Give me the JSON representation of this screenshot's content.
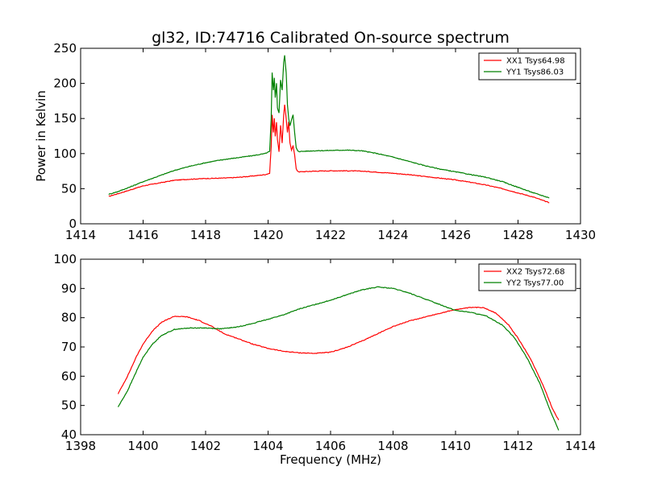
{
  "chart_data": [
    {
      "type": "line",
      "title": "gl32, ID:74716 Calibrated On-source spectrum",
      "xlabel": "",
      "ylabel": "Power in Kelvin",
      "xlim": [
        1414,
        1430
      ],
      "ylim": [
        0,
        250
      ],
      "xticks": [
        1414,
        1416,
        1418,
        1420,
        1422,
        1424,
        1426,
        1428,
        1430
      ],
      "yticks": [
        0,
        50,
        100,
        150,
        200,
        250
      ],
      "grid": false,
      "legend_position": "top-right",
      "series": [
        {
          "name": "XX1 Tsys64.98",
          "color": "#ff0000",
          "points": [
            [
              1414.9,
              39
            ],
            [
              1415.2,
              43
            ],
            [
              1415.5,
              47
            ],
            [
              1416.0,
              54
            ],
            [
              1416.5,
              58
            ],
            [
              1417.0,
              62
            ],
            [
              1417.5,
              63.5
            ],
            [
              1418.0,
              64.5
            ],
            [
              1418.5,
              65
            ],
            [
              1419.0,
              66
            ],
            [
              1419.5,
              68
            ],
            [
              1419.9,
              70
            ],
            [
              1420.05,
              72
            ],
            [
              1420.1,
              110
            ],
            [
              1420.13,
              155
            ],
            [
              1420.17,
              130
            ],
            [
              1420.2,
              150
            ],
            [
              1420.23,
              125
            ],
            [
              1420.27,
              145
            ],
            [
              1420.3,
              120
            ],
            [
              1420.35,
              103
            ],
            [
              1420.4,
              140
            ],
            [
              1420.45,
              115
            ],
            [
              1420.5,
              155
            ],
            [
              1420.53,
              170
            ],
            [
              1420.58,
              150
            ],
            [
              1420.62,
              130
            ],
            [
              1420.66,
              145
            ],
            [
              1420.7,
              115
            ],
            [
              1420.75,
              105
            ],
            [
              1420.8,
              112
            ],
            [
              1420.85,
              98
            ],
            [
              1420.9,
              78
            ],
            [
              1420.95,
              75
            ],
            [
              1421.0,
              74
            ],
            [
              1421.5,
              75
            ],
            [
              1422.0,
              75.5
            ],
            [
              1422.5,
              75.5
            ],
            [
              1423.0,
              75
            ],
            [
              1423.5,
              73.5
            ],
            [
              1424.0,
              72
            ],
            [
              1424.5,
              70
            ],
            [
              1425.0,
              67.5
            ],
            [
              1425.5,
              65
            ],
            [
              1426.0,
              62.5
            ],
            [
              1426.5,
              59
            ],
            [
              1427.0,
              55
            ],
            [
              1427.5,
              50
            ],
            [
              1428.0,
              44
            ],
            [
              1428.5,
              38
            ],
            [
              1429.0,
              30
            ]
          ]
        },
        {
          "name": "YY1 Tsys86.03",
          "color": "#008000",
          "points": [
            [
              1414.9,
              42
            ],
            [
              1415.2,
              46
            ],
            [
              1415.5,
              51
            ],
            [
              1416.0,
              60
            ],
            [
              1416.5,
              68
            ],
            [
              1417.0,
              76
            ],
            [
              1417.5,
              82
            ],
            [
              1418.0,
              87
            ],
            [
              1418.5,
              91
            ],
            [
              1419.0,
              94
            ],
            [
              1419.5,
              97
            ],
            [
              1419.9,
              100
            ],
            [
              1420.05,
              103
            ],
            [
              1420.1,
              150
            ],
            [
              1420.13,
              215
            ],
            [
              1420.17,
              190
            ],
            [
              1420.2,
              208
            ],
            [
              1420.23,
              180
            ],
            [
              1420.27,
              200
            ],
            [
              1420.3,
              165
            ],
            [
              1420.35,
              158
            ],
            [
              1420.4,
              205
            ],
            [
              1420.45,
              190
            ],
            [
              1420.5,
              230
            ],
            [
              1420.53,
              240
            ],
            [
              1420.58,
              215
            ],
            [
              1420.62,
              170
            ],
            [
              1420.66,
              150
            ],
            [
              1420.7,
              140
            ],
            [
              1420.75,
              148
            ],
            [
              1420.8,
              155
            ],
            [
              1420.85,
              130
            ],
            [
              1420.9,
              108
            ],
            [
              1420.95,
              104
            ],
            [
              1421.0,
              103
            ],
            [
              1421.5,
              104
            ],
            [
              1422.0,
              104.5
            ],
            [
              1422.5,
              105
            ],
            [
              1423.0,
              104
            ],
            [
              1423.5,
              100
            ],
            [
              1424.0,
              95
            ],
            [
              1424.5,
              89
            ],
            [
              1425.0,
              83
            ],
            [
              1425.5,
              78
            ],
            [
              1426.0,
              74
            ],
            [
              1426.5,
              70
            ],
            [
              1427.0,
              66
            ],
            [
              1427.5,
              60
            ],
            [
              1428.0,
              52
            ],
            [
              1428.5,
              44
            ],
            [
              1429.0,
              37
            ]
          ]
        }
      ]
    },
    {
      "type": "line",
      "title": "",
      "xlabel": "Frequency (MHz)",
      "ylabel": "",
      "xlim": [
        1398,
        1414
      ],
      "ylim": [
        40,
        100
      ],
      "xticks": [
        1398,
        1400,
        1402,
        1404,
        1406,
        1408,
        1410,
        1412,
        1414
      ],
      "yticks": [
        40,
        50,
        60,
        70,
        80,
        90,
        100
      ],
      "grid": false,
      "legend_position": "top-right",
      "series": [
        {
          "name": "XX2 Tsys72.68",
          "color": "#ff0000",
          "points": [
            [
              1399.2,
              54
            ],
            [
              1399.5,
              60
            ],
            [
              1399.8,
              67
            ],
            [
              1400.0,
              71
            ],
            [
              1400.3,
              75.5
            ],
            [
              1400.6,
              78.5
            ],
            [
              1401.0,
              80.5
            ],
            [
              1401.4,
              80.3
            ],
            [
              1401.8,
              79
            ],
            [
              1402.2,
              77
            ],
            [
              1402.6,
              74.5
            ],
            [
              1403.0,
              73
            ],
            [
              1403.5,
              71
            ],
            [
              1404.0,
              69.5
            ],
            [
              1404.5,
              68.5
            ],
            [
              1405.0,
              68
            ],
            [
              1405.5,
              67.8
            ],
            [
              1406.0,
              68.2
            ],
            [
              1406.5,
              69.8
            ],
            [
              1407.0,
              72
            ],
            [
              1407.5,
              74.5
            ],
            [
              1408.0,
              77
            ],
            [
              1408.5,
              78.8
            ],
            [
              1409.0,
              80.2
            ],
            [
              1409.5,
              81.5
            ],
            [
              1410.0,
              82.8
            ],
            [
              1410.5,
              83.5
            ],
            [
              1410.9,
              83.5
            ],
            [
              1411.3,
              81.5
            ],
            [
              1411.7,
              77.5
            ],
            [
              1412.0,
              73
            ],
            [
              1412.4,
              66
            ],
            [
              1412.8,
              57
            ],
            [
              1413.1,
              49
            ],
            [
              1413.3,
              45
            ]
          ]
        },
        {
          "name": "YY2 Tsys77.00",
          "color": "#008000",
          "points": [
            [
              1399.2,
              49.5
            ],
            [
              1399.5,
              55
            ],
            [
              1399.8,
              62
            ],
            [
              1400.0,
              66.5
            ],
            [
              1400.3,
              71
            ],
            [
              1400.6,
              74
            ],
            [
              1401.0,
              76
            ],
            [
              1401.5,
              76.5
            ],
            [
              1402.0,
              76.5
            ],
            [
              1402.5,
              76.2
            ],
            [
              1403.0,
              76.8
            ],
            [
              1403.5,
              78
            ],
            [
              1404.0,
              79.5
            ],
            [
              1404.5,
              81
            ],
            [
              1405.0,
              83
            ],
            [
              1405.5,
              84.5
            ],
            [
              1406.0,
              86
            ],
            [
              1406.5,
              87.8
            ],
            [
              1407.0,
              89.5
            ],
            [
              1407.5,
              90.5
            ],
            [
              1408.0,
              90
            ],
            [
              1408.5,
              88.5
            ],
            [
              1409.0,
              86.5
            ],
            [
              1409.5,
              84.5
            ],
            [
              1410.0,
              82.5
            ],
            [
              1410.5,
              81.8
            ],
            [
              1411.0,
              80.5
            ],
            [
              1411.5,
              77.5
            ],
            [
              1411.9,
              73
            ],
            [
              1412.3,
              66
            ],
            [
              1412.7,
              57.5
            ],
            [
              1413.0,
              49
            ],
            [
              1413.3,
              41.5
            ]
          ]
        }
      ]
    }
  ]
}
